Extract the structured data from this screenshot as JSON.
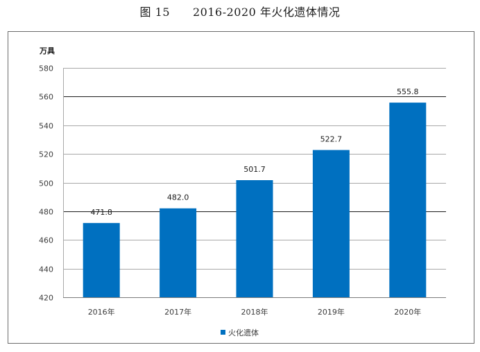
{
  "figure": {
    "title": "图 15　　2016-2020 年火化遗体情况"
  },
  "chart_data": {
    "type": "bar",
    "title": "",
    "unit_label": "万具",
    "categories": [
      "2016年",
      "2017年",
      "2018年",
      "2019年",
      "2020年"
    ],
    "series": [
      {
        "name": "火化遗体",
        "color": "#0070C0",
        "values": [
          471.8,
          482.0,
          501.7,
          522.7,
          555.8
        ],
        "labels": [
          "471.8",
          "482.0",
          "501.7",
          "522.7",
          "555.8"
        ]
      }
    ],
    "ylim": [
      420,
      580
    ],
    "yticks": [
      420,
      440,
      460,
      480,
      500,
      520,
      540,
      560,
      580
    ],
    "grid": true,
    "legend_position": "bottom"
  }
}
